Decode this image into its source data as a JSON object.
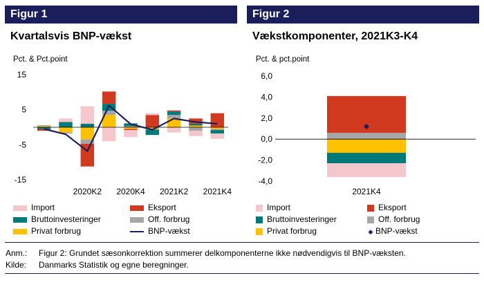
{
  "colors": {
    "header_bg": "#1a1f5c",
    "import": "#f4c7cd",
    "eksport": "#d23a20",
    "brutto": "#007a78",
    "off": "#a6a6a6",
    "privat": "#ffc000",
    "bnp": "#1a1f5c"
  },
  "fig1": {
    "header": "Figur 1",
    "title": "Kvartalsvis BNP-vækst",
    "unit": "Pct. & Pct.point",
    "legend": {
      "import": "Import",
      "eksport": "Eksport",
      "brutto": "Bruttoinvesteringer",
      "off": "Off. forbrug",
      "privat": "Privat forbrug",
      "bnp": "BNP-vækst"
    }
  },
  "fig2": {
    "header": "Figur 2",
    "title": "Vækstkomponenter, 2021K3-K4",
    "unit": "Pct. & pct.point",
    "legend": {
      "import": "Import",
      "eksport": "Eksport",
      "brutto": "Bruttoinvesteringer",
      "off": "Off. forbrug",
      "privat": "Privat forbrug",
      "bnp": "BNP-vækst"
    }
  },
  "notes": {
    "anm_label": "Anm.:",
    "anm_text": "Figur 2: Grundet sæsonkorrektion summerer delkomponenterne ikke nødvendigvis til BNP-væksten.",
    "kilde_label": "Kilde:",
    "kilde_text": "Danmarks Statistik og egne beregninger."
  },
  "chart_data": [
    {
      "type": "bar",
      "stacked": true,
      "quarters": [
        "2019K4",
        "2020K1",
        "2020K2",
        "2020K3",
        "2020K4",
        "2021K1",
        "2021K2",
        "2021K3",
        "2021K4"
      ],
      "x_tick_labels": [
        {
          "quarter": "2020K2",
          "label": "2020K2"
        },
        {
          "quarter": "2020K4",
          "label": "2020K4"
        },
        {
          "quarter": "2021K2",
          "label": "2021K2"
        },
        {
          "quarter": "2021K4",
          "label": "2021K4"
        }
      ],
      "ylim": [
        -15,
        15
      ],
      "y_ticks": [
        15,
        5,
        -5,
        -15
      ],
      "grid": false,
      "legend_position": "bottom",
      "series": [
        {
          "key": "privat",
          "name": "Privat forbrug",
          "values": [
            0.3,
            -1.5,
            -3.5,
            3.5,
            -0.5,
            -0.5,
            2.5,
            0.5,
            -0.5
          ]
        },
        {
          "key": "off",
          "name": "Off. forbrug",
          "values": [
            0.3,
            -0.3,
            -1.2,
            1.2,
            0.3,
            -0.2,
            1.0,
            -1.0,
            -0.3
          ]
        },
        {
          "key": "brutto",
          "name": "Bruttoinvesteringer",
          "values": [
            -0.5,
            1.5,
            1.0,
            2.0,
            0.8,
            -1.5,
            1.0,
            0.5,
            -1.0
          ]
        },
        {
          "key": "eksport",
          "name": "Eksport",
          "values": [
            -0.5,
            0.0,
            -6.5,
            3.5,
            -0.3,
            3.5,
            0.3,
            1.5,
            4.0
          ]
        },
        {
          "key": "import",
          "name": "Import",
          "values": [
            0.0,
            1.0,
            5.0,
            -4.0,
            -2.0,
            0.5,
            -1.5,
            -1.5,
            -1.5
          ]
        }
      ],
      "line": {
        "key": "bnp",
        "name": "BNP-vækst",
        "values": [
          -0.5,
          -2.0,
          -6.8,
          6.2,
          0.9,
          -0.7,
          2.5,
          1.5,
          1.0
        ]
      }
    },
    {
      "type": "bar",
      "stacked": true,
      "categories": [
        "2021K4"
      ],
      "ylim": [
        -4.0,
        6.0
      ],
      "y_ticks": [
        "6,0",
        "4,0",
        "2,0",
        "0,0",
        "-2,0",
        "-4,0"
      ],
      "y_tick_values": [
        6,
        4,
        2,
        0,
        -2,
        -4
      ],
      "grid": false,
      "legend_position": "bottom",
      "series": [
        {
          "key": "off",
          "name": "Off. forbrug",
          "values": [
            0.6
          ]
        },
        {
          "key": "eksport",
          "name": "Eksport",
          "values": [
            3.5
          ]
        },
        {
          "key": "privat",
          "name": "Privat forbrug",
          "values": [
            -1.3
          ]
        },
        {
          "key": "brutto",
          "name": "Bruttoinvesteringer",
          "values": [
            -1.0
          ]
        },
        {
          "key": "import",
          "name": "Import",
          "values": [
            -1.3
          ]
        }
      ],
      "point": {
        "key": "bnp",
        "name": "BNP-vækst",
        "values": [
          1.2
        ]
      }
    }
  ]
}
